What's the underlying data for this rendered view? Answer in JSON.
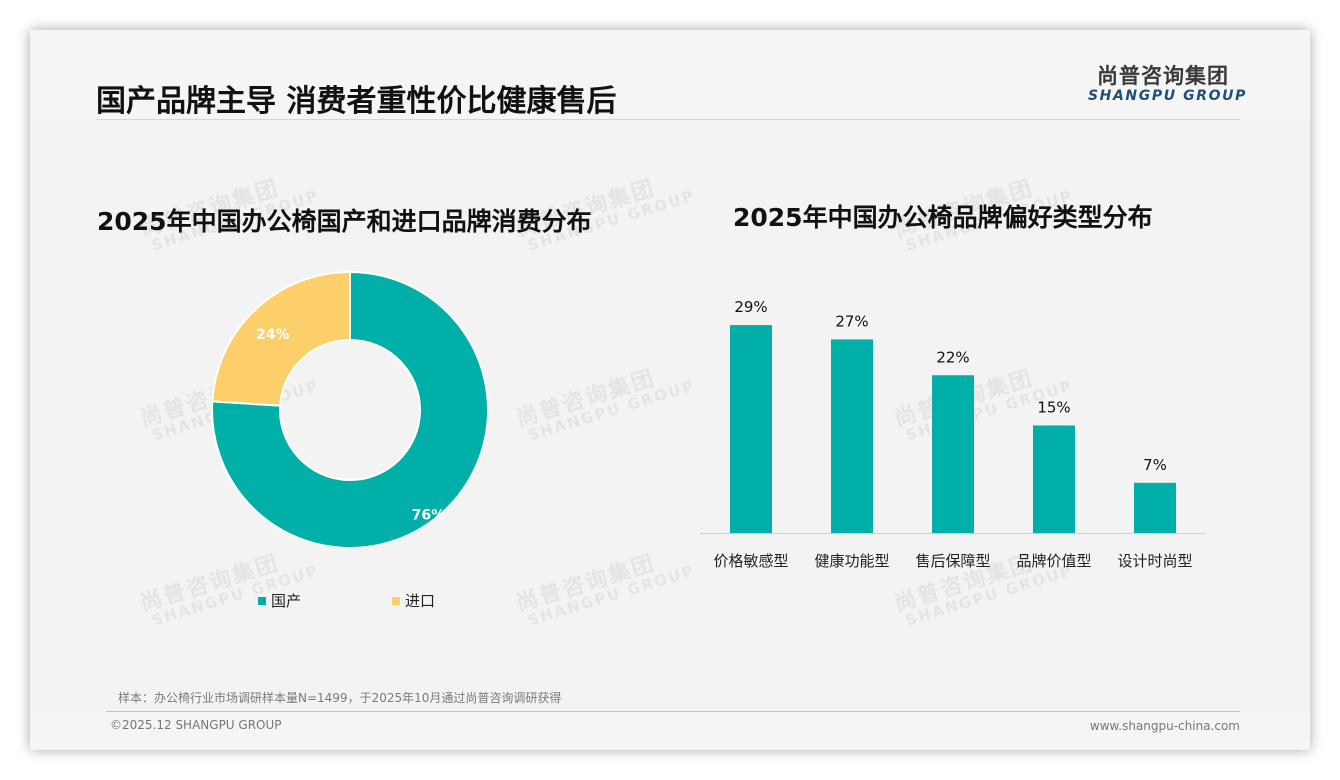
{
  "header": {
    "title": "国产品牌主导 消费者重性价比健康售后",
    "logo_cn": "尚普咨询集团",
    "logo_en": "SHANGPU GROUP"
  },
  "watermark": {
    "cn": "尚普咨询集团",
    "en": "SHANGPU GROUP"
  },
  "colors": {
    "teal": "#00AFA8",
    "yellow": "#FDCF6A",
    "logo_blue": "#1F4E79"
  },
  "chart_data": [
    {
      "type": "pie",
      "variant": "donut",
      "title": "2025年中国办公椅国产和进口品牌消费分布",
      "categories": [
        "国产",
        "进口"
      ],
      "values": [
        76,
        24
      ],
      "labels": [
        "76%",
        "24%"
      ],
      "colors": [
        "#00AFA8",
        "#FDCF6A"
      ],
      "legend_position": "bottom"
    },
    {
      "type": "bar",
      "title": "2025年中国办公椅品牌偏好类型分布",
      "categories": [
        "价格敏感型",
        "健康功能型",
        "售后保障型",
        "品牌价值型",
        "设计时尚型"
      ],
      "values": [
        29,
        27,
        22,
        15,
        7
      ],
      "labels": [
        "29%",
        "27%",
        "22%",
        "15%",
        "7%"
      ],
      "unit": "%",
      "xlabel": "",
      "ylabel": "",
      "ylim": [
        0,
        30
      ],
      "grid": false,
      "color": "#00AFA8"
    }
  ],
  "footer": {
    "note": "样本：办公椅行业市场调研样本量N=1499，于2025年10月通过尚普咨询调研获得",
    "copyright": "©2025.12 SHANGPU GROUP",
    "website": "www.shangpu-china.com"
  }
}
